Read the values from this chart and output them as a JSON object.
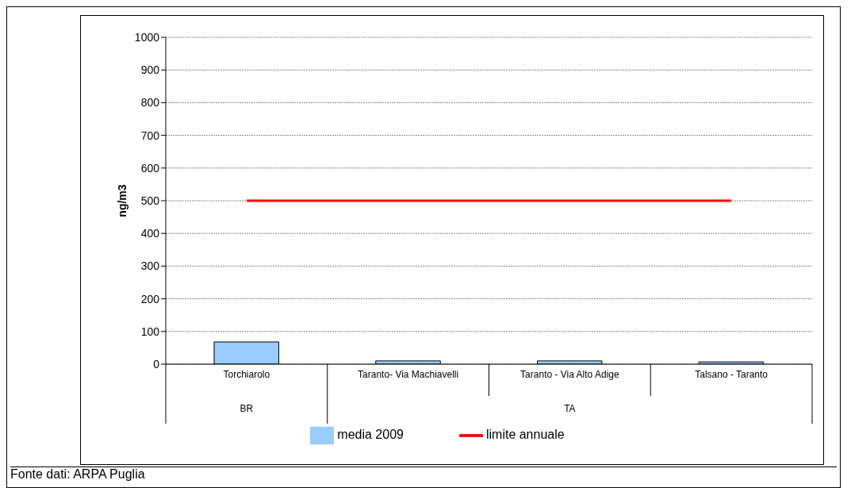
{
  "chart_data": {
    "type": "bar",
    "ylabel": "ng/m3",
    "categories": [
      "Torchiarolo",
      "Taranto- Via Machiavelli",
      "Taranto - Via Alto Adige",
      "Talsano - Taranto"
    ],
    "series": [
      {
        "name": "media 2009",
        "color": "#99ccff",
        "values": [
          68,
          10,
          10,
          7
        ]
      },
      {
        "name": "limite annuale",
        "type": "line",
        "color": "#ff0000",
        "values": [
          500,
          500,
          500,
          500
        ]
      }
    ],
    "ylim": [
      0,
      1000
    ],
    "yticks": [
      0,
      100,
      200,
      300,
      400,
      500,
      600,
      700,
      800,
      900,
      1000
    ],
    "grid": "y",
    "legend": "bottom",
    "marker": "none",
    "line_style": "solid",
    "annotations": [
      "BR",
      "TA",
      "Fonte dati: ARPA Puglia"
    ]
  }
}
